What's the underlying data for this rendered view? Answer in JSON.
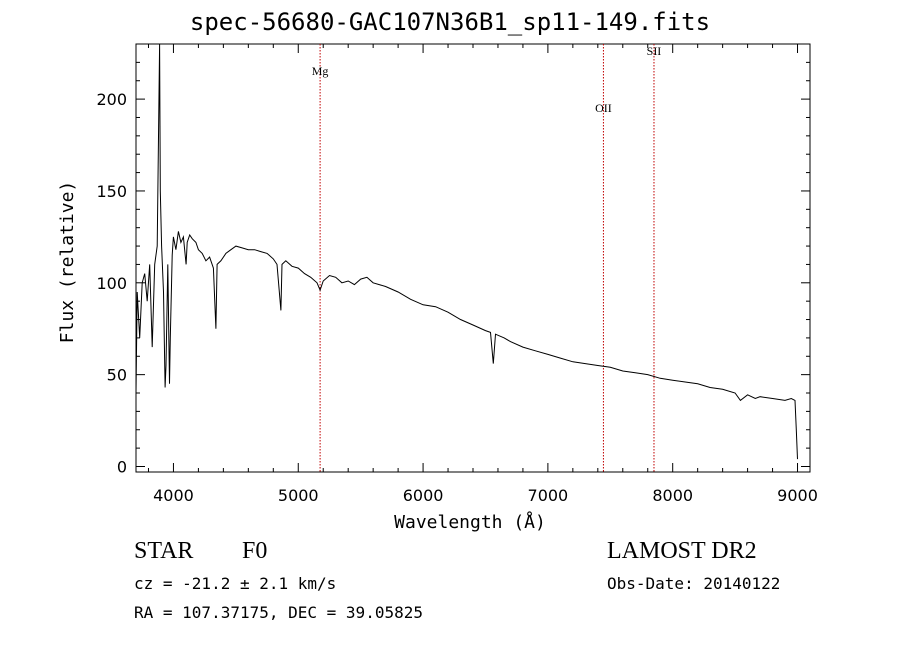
{
  "chart_data": {
    "type": "line",
    "title": "spec-56680-GAC107N36B1_sp11-149.fits",
    "xlabel": "Wavelength (Å)",
    "ylabel": "Flux (relative)",
    "xlim": [
      3700,
      9100
    ],
    "ylim": [
      -3,
      230
    ],
    "xticks": [
      4000,
      5000,
      6000,
      7000,
      8000,
      9000
    ],
    "yticks": [
      0,
      50,
      100,
      150,
      200
    ],
    "grid": false,
    "series": [
      {
        "x": [
          3700,
          3710,
          3730,
          3750,
          3770,
          3790,
          3810,
          3830,
          3850,
          3870,
          3889,
          3895,
          3905,
          3920,
          3933,
          3940,
          3955,
          3968,
          3975,
          3990,
          4000,
          4020,
          4040,
          4060,
          4080,
          4101,
          4110,
          4130,
          4150,
          4180,
          4200,
          4230,
          4260,
          4290,
          4320,
          4340,
          4350,
          4380,
          4420,
          4460,
          4500,
          4550,
          4600,
          4650,
          4700,
          4750,
          4800,
          4830,
          4861,
          4870,
          4900,
          4950,
          5000,
          5050,
          5100,
          5150,
          5175,
          5200,
          5250,
          5300,
          5350,
          5400,
          5450,
          5500,
          5550,
          5600,
          5700,
          5800,
          5900,
          6000,
          6100,
          6200,
          6300,
          6400,
          6500,
          6540,
          6563,
          6580,
          6650,
          6700,
          6800,
          6900,
          7000,
          7100,
          7200,
          7300,
          7400,
          7500,
          7600,
          7700,
          7800,
          7900,
          8000,
          8100,
          8200,
          8300,
          8400,
          8500,
          8542,
          8600,
          8662,
          8700,
          8800,
          8900,
          8950,
          8980,
          8990,
          9000
        ],
        "y": [
          40,
          95,
          70,
          100,
          105,
          90,
          110,
          65,
          110,
          120,
          230,
          150,
          120,
          95,
          43,
          55,
          110,
          45,
          70,
          115,
          125,
          118,
          128,
          122,
          125,
          110,
          122,
          126,
          124,
          122,
          118,
          116,
          112,
          114,
          108,
          75,
          110,
          112,
          116,
          118,
          120,
          119,
          118,
          118,
          117,
          116,
          113,
          110,
          85,
          110,
          112,
          109,
          108,
          105,
          103,
          100,
          96,
          101,
          104,
          103,
          100,
          101,
          99,
          102,
          103,
          100,
          98,
          95,
          91,
          88,
          87,
          84,
          80,
          77,
          74,
          73,
          56,
          72,
          70,
          68,
          65,
          63,
          61,
          59,
          57,
          56,
          55,
          54,
          52,
          51,
          50,
          48,
          47,
          46,
          45,
          43,
          42,
          40,
          36,
          39,
          37,
          38,
          37,
          36,
          37,
          36,
          20,
          4
        ]
      }
    ],
    "annotations": [
      {
        "label": "Mg",
        "x": 5175,
        "y": 213
      },
      {
        "label": "OII",
        "x": 7445,
        "y": 193
      },
      {
        "label": "SII",
        "x": 7850,
        "y": 224
      }
    ]
  },
  "info": {
    "class": "STAR",
    "subclass": "F0",
    "survey": "LAMOST DR2",
    "redshift": "cz = -21.2 ± 2.1 km/s",
    "obs_date": "Obs-Date: 20140122",
    "coords": "RA = 107.37175, DEC =  39.05825"
  },
  "colors": {
    "line": "#000000",
    "marker_lines": "#c00000"
  }
}
